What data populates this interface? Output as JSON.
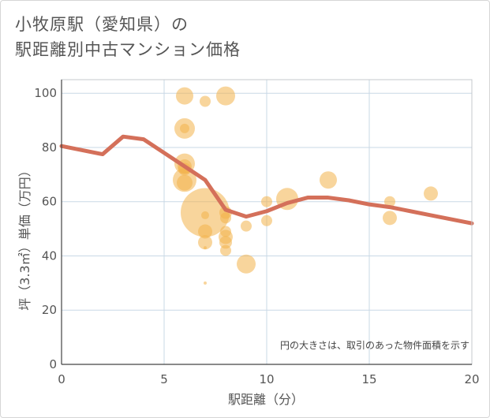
{
  "title_line1": "小牧原駅（愛知県）の",
  "title_line2": "駅距離別中古マンション価格",
  "chart_data": {
    "type": "scatter",
    "title": "小牧原駅（愛知県）の駅距離別中古マンション価格",
    "xlabel": "駅距離（分）",
    "ylabel": "坪（3.3㎡）単価（万円）",
    "xlim": [
      0,
      20
    ],
    "ylim": [
      0,
      105
    ],
    "xticks": [
      0,
      5,
      10,
      15,
      20
    ],
    "yticks": [
      0,
      20,
      40,
      60,
      80,
      100
    ],
    "grid": true,
    "annotation": "円の大きさは、取引のあった物件面積を示す",
    "colors": {
      "bubble": "#f2b24b",
      "line": "#d4705a",
      "grid": "#c9d8e6"
    },
    "points": [
      {
        "x": 6,
        "y": 99,
        "size": 11
      },
      {
        "x": 7,
        "y": 97,
        "size": 7
      },
      {
        "x": 8,
        "y": 99,
        "size": 12
      },
      {
        "x": 6,
        "y": 87,
        "size": 13
      },
      {
        "x": 6,
        "y": 87,
        "size": 6
      },
      {
        "x": 6,
        "y": 74,
        "size": 13
      },
      {
        "x": 6,
        "y": 73,
        "size": 9
      },
      {
        "x": 6,
        "y": 72,
        "size": 8
      },
      {
        "x": 6,
        "y": 68,
        "size": 15
      },
      {
        "x": 6,
        "y": 67,
        "size": 10
      },
      {
        "x": 7,
        "y": 56,
        "size": 31
      },
      {
        "x": 7,
        "y": 55,
        "size": 5
      },
      {
        "x": 8,
        "y": 56,
        "size": 8
      },
      {
        "x": 8,
        "y": 54,
        "size": 7
      },
      {
        "x": 7,
        "y": 49,
        "size": 9
      },
      {
        "x": 8,
        "y": 49,
        "size": 7
      },
      {
        "x": 8,
        "y": 47,
        "size": 9
      },
      {
        "x": 7,
        "y": 45,
        "size": 9
      },
      {
        "x": 8,
        "y": 45,
        "size": 8
      },
      {
        "x": 8,
        "y": 42,
        "size": 7
      },
      {
        "x": 7,
        "y": 43,
        "size": 2
      },
      {
        "x": 9,
        "y": 51,
        "size": 7
      },
      {
        "x": 9,
        "y": 37,
        "size": 12
      },
      {
        "x": 7,
        "y": 30,
        "size": 2
      },
      {
        "x": 10,
        "y": 60,
        "size": 7
      },
      {
        "x": 10,
        "y": 53,
        "size": 7
      },
      {
        "x": 11,
        "y": 61,
        "size": 14
      },
      {
        "x": 13,
        "y": 68,
        "size": 11
      },
      {
        "x": 16,
        "y": 60,
        "size": 7
      },
      {
        "x": 16,
        "y": 54,
        "size": 9
      },
      {
        "x": 18,
        "y": 63,
        "size": 9
      }
    ],
    "trend_line": {
      "x": [
        0,
        2,
        3,
        4,
        5,
        6,
        7,
        8,
        9,
        10,
        11,
        12,
        13,
        14,
        15,
        16,
        17,
        18,
        19,
        20
      ],
      "y": [
        80.5,
        77.5,
        84,
        83,
        78,
        73,
        68,
        57,
        54.5,
        56.5,
        59.5,
        61.5,
        61.5,
        60.5,
        59,
        58,
        56.5,
        55,
        53.5,
        52
      ]
    }
  }
}
